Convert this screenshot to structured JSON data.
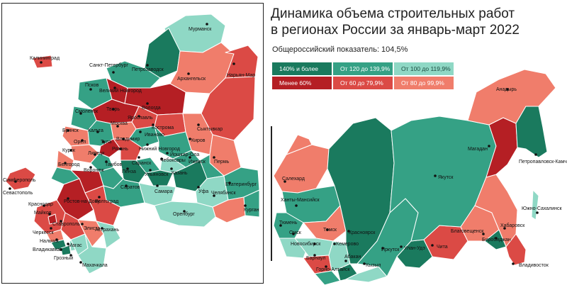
{
  "title": {
    "line1": "Динамика объема строительных работ",
    "line2": "в регионах России за январь-март 2022"
  },
  "subtitle": "Общероссийский показатель: 104,5%",
  "legend": [
    {
      "label": "140% и более",
      "color": "#1a7a5e"
    },
    {
      "label": "От 120 до 139,9%",
      "color": "#35a185"
    },
    {
      "label": "От 100 до 119,9%",
      "color": "#8fd8c5"
    },
    {
      "label": "Менее 60%",
      "color": "#b51f24"
    },
    {
      "label": "От 60 до 79,9%",
      "color": "#db4a45"
    },
    {
      "label": "От 80 до 99,9%",
      "color": "#f07d6b"
    }
  ],
  "cities": {
    "murmansk": "Мурманск",
    "kaliningrad": "Калининград",
    "spb": "Санкт-Петербург",
    "petrozavodsk": "Петрозаводск",
    "arkhangelsk": "Архангельск",
    "naryan_mar": "Нарьян-Мар",
    "pskov": "Псков",
    "vnovgorod": "Великий Новгород",
    "tver": "Тверь",
    "vologda": "Вологда",
    "smolensk": "Смоленск",
    "moskva": "Москва",
    "yaroslavl": "Ярославль",
    "kostroma": "Кострома",
    "syktyvkar": "Сыктывкар",
    "bryansk": "Брянск",
    "kaluga": "Калуга",
    "tula": "Тула",
    "vladimir": "Владимир",
    "ivanovo": "Иваново",
    "orel": "Орёл",
    "ryazan": "Рязань",
    "kursk": "Курск",
    "lipetsk": "Липецк",
    "nnovgorod": "Нижний Новгород",
    "kirov": "Киров",
    "yoshkar_ola": "Йошкар-Ола",
    "belgorod": "Белгород",
    "tambov": "Тамбов",
    "saransk": "Саранск",
    "cheboksary": "Чебоксары",
    "izhevsk": "Ижевск",
    "perm": "Пермь",
    "voronezh": "Воронеж",
    "penza": "Пенза",
    "ulyanovsk": "Ульяновск",
    "kazan": "Казань",
    "simferopol": "Симферополь",
    "sevastopol": "Севастополь",
    "saratov": "Саратов",
    "samara": "Самара",
    "yekaterinburg": "Екатеринбург",
    "rostov": "Ростов-на-Дону",
    "volgograd": "Волгоград",
    "ufa": "Уфа",
    "chelyabinsk": "Челябинск",
    "krasnodar": "Краснодар",
    "maykop": "Майкоп",
    "orenburg": "Оренбург",
    "kurgan": "Курган",
    "stavropol": "Ставрополь",
    "elista": "Элиста",
    "cherkessk": "Черкесск",
    "astrakhan": "Астрахань",
    "nalchik": "Нальчик",
    "magas": "Магас",
    "vladikavkaz": "Владикавказ",
    "grozny": "Грозный",
    "makhachkala": "Махачкала",
    "salekhard": "Салехард",
    "khanty": "Ханты-Мансийск",
    "tyumen": "Тюмень",
    "omsk": "Омск",
    "tomsk": "Томск",
    "krasnoyarsk": "Красноярск",
    "novosibirsk": "Новосибирск",
    "kemerovo": "Кемерово",
    "barnaul": "Барнаул",
    "abakan": "Абакан",
    "gorno_altaysk": "Горно-Алтайск",
    "kyzyl": "Кызыл",
    "irkutsk": "Иркутск",
    "ulan_ude": "Улан-Удэ",
    "chita": "Чита",
    "yakutsk": "Якутск",
    "magadan": "Магадан",
    "anadyr": "Анадырь",
    "petropavlovsk": "Петропавловск-Камчатский",
    "blagoveshchensk": "Благовещенск",
    "birobidzhan": "Биробиджан",
    "khabarovsk": "Хабаровск",
    "yuzhno": "Южно-Сахалинск",
    "vladivostok": "Владивосток"
  }
}
